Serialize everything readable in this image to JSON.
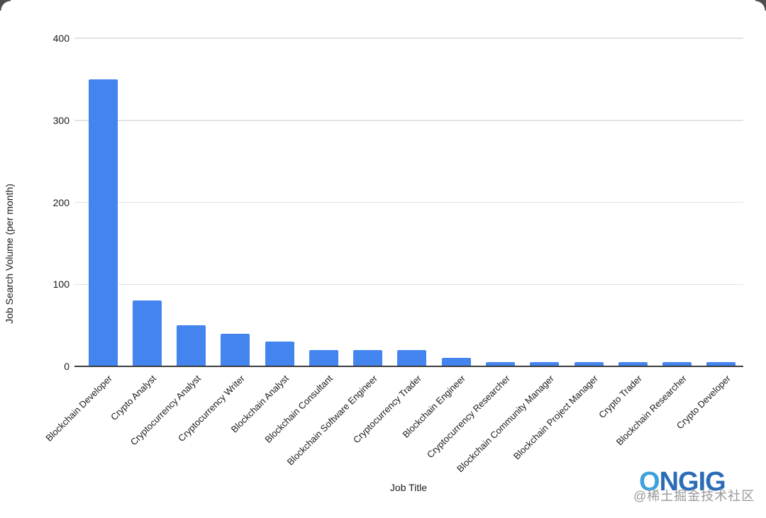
{
  "chart_data": {
    "type": "bar",
    "title": "",
    "xlabel": "Job Title",
    "ylabel": "Job Search Volume (per month)",
    "categories": [
      "Blockchain Developer",
      "Crypto Analyst",
      "Cryptocurrency Analyst",
      "Cryptocurrency Writer",
      "Blockchain Analyst",
      "Blockchain Consultant",
      "Blockchain Software Engineer",
      "Cryptocurrency Trader",
      "Blockchain Engineer",
      "Cryptocurrency Researcher",
      "Blockchain Community Manager",
      "Blockchain Project Manager",
      "Crypto Trader",
      "Blockchain Researcher",
      "Crypto Developer"
    ],
    "values": [
      350,
      80,
      50,
      40,
      30,
      20,
      20,
      20,
      10,
      5,
      5,
      5,
      5,
      5,
      5
    ],
    "ylim": [
      0,
      400
    ],
    "yticks": [
      0,
      100,
      200,
      300,
      400
    ],
    "grid": true,
    "legend": "none",
    "bar_color": "#4484EE",
    "gridline_color": "#e3e3e3",
    "baseline_color": "#3c3c3c",
    "text_color": "#1b1b1b"
  },
  "branding": {
    "logo_light": "O",
    "logo_dark": "NGIG",
    "logo_light_color": "#3DA1DB",
    "logo_dark_color": "#2C6CB7"
  },
  "watermark": {
    "text": "@稀土掘金技术社区",
    "color": "#868686"
  }
}
